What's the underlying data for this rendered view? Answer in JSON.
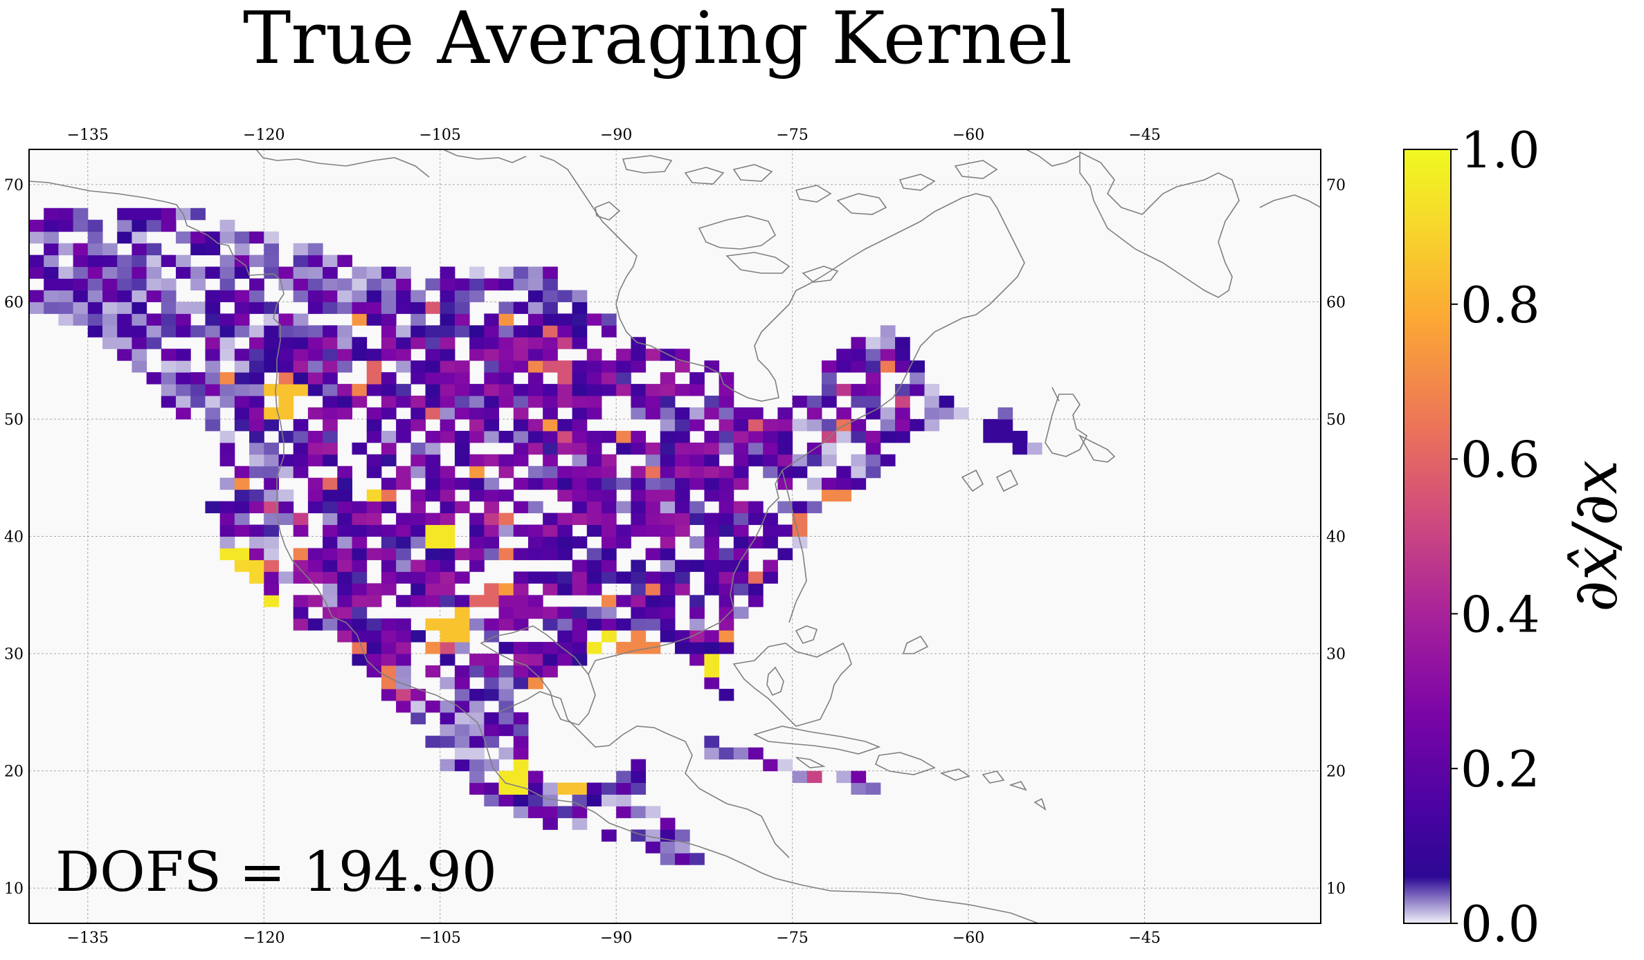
{
  "title": "True Averaging Kernel",
  "dofs_text": "DOFS = 194.90",
  "colorbar": {
    "label": "∂x̂/∂x",
    "ticks": [
      "0.0",
      "0.2",
      "0.4",
      "0.6",
      "0.8",
      "1.0"
    ],
    "range": [
      0.0,
      1.0
    ],
    "colormap": "plasma"
  },
  "map": {
    "projection": "PlateCarree",
    "lon_range": [
      -140,
      -30
    ],
    "lat_range": [
      7,
      73
    ],
    "lon_ticks": [
      "−135",
      "−120",
      "−105",
      "−90",
      "−75",
      "−60",
      "−45"
    ],
    "lat_ticks": [
      "10",
      "20",
      "30",
      "40",
      "50",
      "60",
      "70"
    ],
    "gridlines": true,
    "background": "#f9f9f9",
    "coastline_color": "#808080"
  },
  "chart_data": {
    "type": "heatmap",
    "title": "True Averaging Kernel",
    "colorbar_label": "∂x̂/∂x",
    "vmin": 0.0,
    "vmax": 1.0,
    "grid_resolution_deg": [
      1.25,
      1.0
    ],
    "description_note": "",
    "notable_cells": [
      {
        "lon": -130.5,
        "lat": 68,
        "value": 0.15
      },
      {
        "lon": -118,
        "lat": 51.5,
        "value": 0.85
      },
      {
        "lon": -123,
        "lat": 38,
        "value": 0.95
      },
      {
        "lon": -121,
        "lat": 37,
        "value": 0.9
      },
      {
        "lon": -118.5,
        "lat": 34,
        "value": 0.95
      },
      {
        "lon": -111.5,
        "lat": 44,
        "value": 0.9
      },
      {
        "lon": -105,
        "lat": 40,
        "value": 0.95
      },
      {
        "lon": -101,
        "lat": 35,
        "value": 0.6
      },
      {
        "lon": -104.5,
        "lat": 32.5,
        "value": 0.85
      },
      {
        "lon": -91,
        "lat": 30.5,
        "value": 0.95
      },
      {
        "lon": -88,
        "lat": 31,
        "value": 0.7
      },
      {
        "lon": -81.5,
        "lat": 29,
        "value": 0.95
      },
      {
        "lon": -99,
        "lat": 19.5,
        "value": 0.95
      },
      {
        "lon": -93.5,
        "lat": 19.5,
        "value": 0.85
      },
      {
        "lon": -74,
        "lat": 41,
        "value": 0.65
      },
      {
        "lon": -71.5,
        "lat": 42.5,
        "value": 0.7
      },
      {
        "lon": -111,
        "lat": 54,
        "value": 0.6
      },
      {
        "lon": -95,
        "lat": 54,
        "value": 0.55
      },
      {
        "lon": -57,
        "lat": 48.5,
        "value": 0.1
      },
      {
        "lon": -72.5,
        "lat": 19,
        "value": 0.5
      }
    ]
  }
}
